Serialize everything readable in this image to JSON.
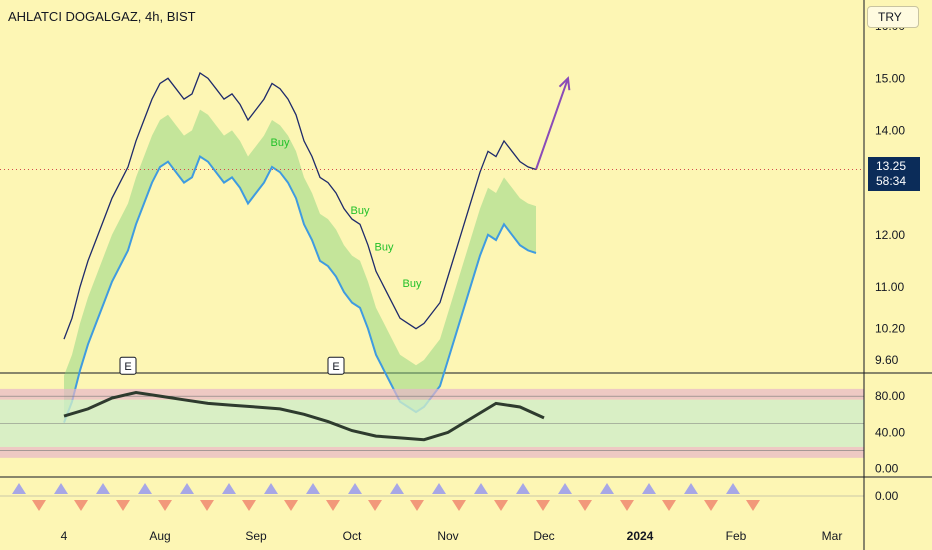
{
  "header": {
    "title": "AHLATCI DOGALGAZ, 4h, BIST",
    "currency": "TRY"
  },
  "last_price": {
    "value": "13.25",
    "countdown": "58:34"
  },
  "chart_data": [
    {
      "type": "line",
      "panel": "price",
      "ylim": [
        9.35,
        16.5
      ],
      "y_ticks": [
        "16.00",
        "15.00",
        "14.00",
        "13.25",
        "12.00",
        "11.00",
        "10.20",
        "9.60"
      ],
      "y_tick_values": [
        16.0,
        15.0,
        14.0,
        13.25,
        12.0,
        11.0,
        10.2,
        9.6
      ],
      "x_ticks": [
        "4",
        "Aug",
        "Sep",
        "Oct",
        "Nov",
        "Dec",
        "2024",
        "Feb",
        "Mar"
      ],
      "x_tick_positions": [
        0,
        12,
        24,
        36,
        48,
        60,
        72,
        84,
        96
      ],
      "xlim": [
        -8,
        100
      ],
      "series": [
        {
          "values": [
            [
              0,
              10.0
            ],
            [
              1,
              10.4
            ],
            [
              2,
              11.0
            ],
            [
              3,
              11.5
            ],
            [
              4,
              11.9
            ],
            [
              5,
              12.3
            ],
            [
              6,
              12.7
            ],
            [
              7,
              13.0
            ],
            [
              8,
              13.3
            ],
            [
              9,
              13.8
            ],
            [
              10,
              14.2
            ],
            [
              11,
              14.6
            ],
            [
              12,
              14.9
            ],
            [
              13,
              15.0
            ],
            [
              14,
              14.8
            ],
            [
              15,
              14.6
            ],
            [
              16,
              14.7
            ],
            [
              17,
              15.1
            ],
            [
              18,
              15.0
            ],
            [
              19,
              14.8
            ],
            [
              20,
              14.6
            ],
            [
              21,
              14.7
            ],
            [
              22,
              14.5
            ],
            [
              23,
              14.2
            ],
            [
              24,
              14.4
            ],
            [
              25,
              14.6
            ],
            [
              26,
              14.9
            ],
            [
              27,
              14.8
            ],
            [
              28,
              14.6
            ],
            [
              29,
              14.3
            ],
            [
              30,
              13.8
            ],
            [
              31,
              13.5
            ],
            [
              32,
              13.1
            ],
            [
              33,
              13.0
            ],
            [
              34,
              12.8
            ],
            [
              35,
              12.5
            ],
            [
              36,
              12.3
            ],
            [
              37,
              12.2
            ],
            [
              38,
              11.8
            ],
            [
              39,
              11.3
            ],
            [
              40,
              11.0
            ],
            [
              41,
              10.7
            ],
            [
              42,
              10.4
            ],
            [
              43,
              10.3
            ],
            [
              44,
              10.2
            ],
            [
              45,
              10.3
            ],
            [
              46,
              10.5
            ],
            [
              47,
              10.7
            ],
            [
              48,
              11.2
            ],
            [
              49,
              11.7
            ],
            [
              50,
              12.2
            ],
            [
              51,
              12.7
            ],
            [
              52,
              13.2
            ],
            [
              53,
              13.6
            ],
            [
              54,
              13.5
            ],
            [
              55,
              13.8
            ],
            [
              56,
              13.6
            ],
            [
              57,
              13.4
            ],
            [
              58,
              13.3
            ],
            [
              59,
              13.25
            ]
          ]
        },
        {
          "name": "projection",
          "values": [
            [
              59,
              13.25
            ],
            [
              63,
              15.0
            ]
          ]
        }
      ],
      "annotations": [
        {
          "text": "Buy",
          "at": [
            27,
            13.7
          ]
        },
        {
          "text": "Buy",
          "at": [
            37,
            12.4
          ]
        },
        {
          "text": "Buy",
          "at": [
            40,
            11.7
          ]
        },
        {
          "text": "Buy",
          "at": [
            43.5,
            11.0
          ]
        },
        {
          "text": "E",
          "at": [
            8,
            9.48
          ]
        },
        {
          "text": "E",
          "at": [
            34,
            9.48
          ]
        }
      ]
    },
    {
      "type": "line",
      "panel": "oscillator",
      "ylim": [
        -8,
        100
      ],
      "y_ticks": [
        "80.00",
        "40.00",
        "0.00"
      ],
      "y_tick_values": [
        80,
        40,
        0
      ],
      "series": [
        {
          "values": [
            [
              0,
              58
            ],
            [
              3,
              66
            ],
            [
              6,
              78
            ],
            [
              9,
              84
            ],
            [
              12,
              80
            ],
            [
              15,
              76
            ],
            [
              18,
              72
            ],
            [
              21,
              70
            ],
            [
              24,
              68
            ],
            [
              27,
              66
            ],
            [
              30,
              60
            ],
            [
              33,
              52
            ],
            [
              36,
              42
            ],
            [
              39,
              36
            ],
            [
              42,
              34
            ],
            [
              45,
              32
            ],
            [
              48,
              40
            ],
            [
              51,
              56
            ],
            [
              54,
              72
            ],
            [
              57,
              68
            ],
            [
              60,
              56
            ]
          ]
        }
      ]
    },
    {
      "type": "bar",
      "panel": "histogram",
      "y_ticks": [
        "0.00"
      ],
      "y_tick_values": [
        0
      ]
    }
  ]
}
